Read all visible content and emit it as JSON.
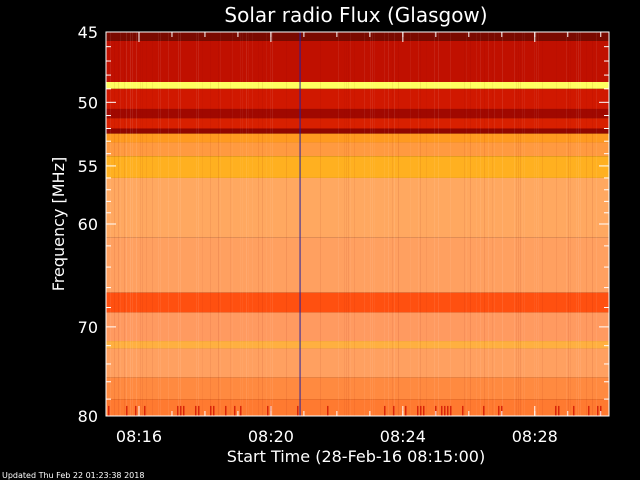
{
  "chart_data": {
    "type": "heatmap",
    "title": "Solar radio Flux (Glasgow)",
    "xlabel": "Start Time (28-Feb-16 08:15:00)",
    "ylabel": "Frequency [MHz]",
    "x_range": [
      "08:15:00",
      "08:30:15"
    ],
    "y_range": [
      45,
      80
    ],
    "y_scale": "log",
    "y_ticks": [
      45,
      50,
      55,
      60,
      70,
      80
    ],
    "x_ticks": [
      "08:16",
      "08:20",
      "08:24",
      "08:28"
    ],
    "x_tick_minutes": [
      16,
      20,
      24,
      28
    ],
    "vertical_marker_time": "08:20:53",
    "intensity_bands": [
      {
        "from_mhz": 45.0,
        "to_mhz": 45.6,
        "color": "#7a0a00"
      },
      {
        "from_mhz": 45.6,
        "to_mhz": 48.5,
        "color": "#c01000"
      },
      {
        "from_mhz": 48.5,
        "to_mhz": 49.0,
        "color": "#ffff60"
      },
      {
        "from_mhz": 49.0,
        "to_mhz": 50.5,
        "color": "#d01800"
      },
      {
        "from_mhz": 50.5,
        "to_mhz": 51.2,
        "color": "#a00800"
      },
      {
        "from_mhz": 51.2,
        "to_mhz": 52.0,
        "color": "#d82000"
      },
      {
        "from_mhz": 52.0,
        "to_mhz": 52.4,
        "color": "#900600"
      },
      {
        "from_mhz": 52.4,
        "to_mhz": 53.1,
        "color": "#ff9a20"
      },
      {
        "from_mhz": 53.1,
        "to_mhz": 54.2,
        "color": "#ff9a40"
      },
      {
        "from_mhz": 54.2,
        "to_mhz": 56.0,
        "color": "#ffb020"
      },
      {
        "from_mhz": 56.0,
        "to_mhz": 61.2,
        "color": "#ffa860"
      },
      {
        "from_mhz": 61.2,
        "to_mhz": 66.5,
        "color": "#ffa060"
      },
      {
        "from_mhz": 66.5,
        "to_mhz": 68.5,
        "color": "#ff5010"
      },
      {
        "from_mhz": 68.5,
        "to_mhz": 71.5,
        "color": "#ff9a60"
      },
      {
        "from_mhz": 71.5,
        "to_mhz": 72.3,
        "color": "#ffb040"
      },
      {
        "from_mhz": 72.3,
        "to_mhz": 75.5,
        "color": "#ffa060"
      },
      {
        "from_mhz": 75.5,
        "to_mhz": 78.0,
        "color": "#ff8a40"
      },
      {
        "from_mhz": 78.0,
        "to_mhz": 80.0,
        "color": "#ff7a30"
      }
    ],
    "colors": {
      "background": "#000000",
      "text": "#ffffff",
      "marker": "#2020a0"
    }
  },
  "footer": {
    "updated": "Updated Thu Feb 22 01:23:38 2018"
  }
}
